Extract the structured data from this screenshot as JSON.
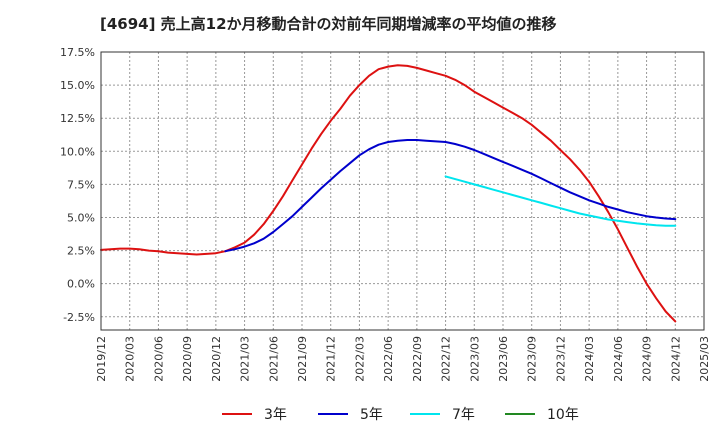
{
  "chart_data": {
    "type": "line",
    "title": "[4694]  売上高12か月移動合計の対前年同期増減率の平均値の推移",
    "xlabel": "",
    "ylabel": "",
    "ylim": [
      -3.5,
      17.5
    ],
    "yticks": [
      17.5,
      15.0,
      12.5,
      10.0,
      7.5,
      5.0,
      2.5,
      0.0,
      -2.5
    ],
    "ytick_labels": [
      "17.5%",
      "15.0%",
      "12.5%",
      "10.0%",
      "7.5%",
      "5.0%",
      "2.5%",
      "0.0%",
      "-2.5%"
    ],
    "x_ticks": [
      "2019/12",
      "2020/03",
      "2020/06",
      "2020/09",
      "2020/12",
      "2021/03",
      "2021/06",
      "2021/09",
      "2021/12",
      "2022/03",
      "2022/06",
      "2022/09",
      "2022/12",
      "2023/03",
      "2023/06",
      "2023/09",
      "2023/12",
      "2024/03",
      "2024/06",
      "2024/09",
      "2024/12",
      "2025/03"
    ],
    "grid": true,
    "legend_position": "bottom",
    "series": [
      {
        "name": "3年",
        "color": "#dd1111",
        "x": [
          "2019/12",
          "2020/01",
          "2020/02",
          "2020/03",
          "2020/04",
          "2020/05",
          "2020/06",
          "2020/07",
          "2020/08",
          "2020/09",
          "2020/10",
          "2020/11",
          "2020/12",
          "2021/01",
          "2021/02",
          "2021/03",
          "2021/04",
          "2021/05",
          "2021/06",
          "2021/07",
          "2021/08",
          "2021/09",
          "2021/10",
          "2021/11",
          "2021/12",
          "2022/01",
          "2022/02",
          "2022/03",
          "2022/04",
          "2022/05",
          "2022/06",
          "2022/07",
          "2022/08",
          "2022/09",
          "2022/10",
          "2022/11",
          "2022/12",
          "2023/01",
          "2023/02",
          "2023/03",
          "2023/04",
          "2023/05",
          "2023/06",
          "2023/07",
          "2023/08",
          "2023/09",
          "2023/10",
          "2023/11",
          "2023/12",
          "2024/01",
          "2024/02",
          "2024/03",
          "2024/04",
          "2024/05",
          "2024/06",
          "2024/07",
          "2024/08",
          "2024/09",
          "2024/10",
          "2024/11",
          "2024/12"
        ],
        "values": [
          2.55,
          2.6,
          2.65,
          2.65,
          2.6,
          2.5,
          2.45,
          2.35,
          2.3,
          2.25,
          2.2,
          2.25,
          2.3,
          2.45,
          2.75,
          3.1,
          3.7,
          4.5,
          5.5,
          6.6,
          7.8,
          9.0,
          10.2,
          11.3,
          12.3,
          13.2,
          14.2,
          15.0,
          15.7,
          16.2,
          16.4,
          16.5,
          16.45,
          16.3,
          16.1,
          15.9,
          15.7,
          15.4,
          15.0,
          14.5,
          14.1,
          13.7,
          13.3,
          12.9,
          12.5,
          12.0,
          11.4,
          10.8,
          10.1,
          9.4,
          8.6,
          7.7,
          6.6,
          5.4,
          4.1,
          2.7,
          1.3,
          0.0,
          -1.1,
          -2.1,
          -2.85
        ]
      },
      {
        "name": "5年",
        "color": "#0000cc",
        "x": [
          "2021/01",
          "2021/02",
          "2021/03",
          "2021/04",
          "2021/05",
          "2021/06",
          "2021/07",
          "2021/08",
          "2021/09",
          "2021/10",
          "2021/11",
          "2021/12",
          "2022/01",
          "2022/02",
          "2022/03",
          "2022/04",
          "2022/05",
          "2022/06",
          "2022/07",
          "2022/08",
          "2022/09",
          "2022/10",
          "2022/11",
          "2022/12",
          "2023/01",
          "2023/02",
          "2023/03",
          "2023/04",
          "2023/05",
          "2023/06",
          "2023/07",
          "2023/08",
          "2023/09",
          "2023/10",
          "2023/11",
          "2023/12",
          "2024/01",
          "2024/02",
          "2024/03",
          "2024/04",
          "2024/05",
          "2024/06",
          "2024/07",
          "2024/08",
          "2024/09",
          "2024/10",
          "2024/11",
          "2024/12"
        ],
        "values": [
          2.45,
          2.6,
          2.8,
          3.05,
          3.4,
          3.9,
          4.5,
          5.1,
          5.8,
          6.5,
          7.2,
          7.85,
          8.5,
          9.1,
          9.7,
          10.15,
          10.5,
          10.7,
          10.8,
          10.85,
          10.85,
          10.8,
          10.75,
          10.7,
          10.55,
          10.35,
          10.1,
          9.8,
          9.5,
          9.2,
          8.9,
          8.6,
          8.3,
          7.95,
          7.6,
          7.25,
          6.9,
          6.6,
          6.3,
          6.05,
          5.8,
          5.6,
          5.4,
          5.25,
          5.1,
          5.0,
          4.92,
          4.88
        ]
      },
      {
        "name": "7年",
        "color": "#00e5ee",
        "x": [
          "2022/12",
          "2023/01",
          "2023/02",
          "2023/03",
          "2023/04",
          "2023/05",
          "2023/06",
          "2023/07",
          "2023/08",
          "2023/09",
          "2023/10",
          "2023/11",
          "2023/12",
          "2024/01",
          "2024/02",
          "2024/03",
          "2024/04",
          "2024/05",
          "2024/06",
          "2024/07",
          "2024/08",
          "2024/09",
          "2024/10",
          "2024/11",
          "2024/12"
        ],
        "values": [
          8.1,
          7.9,
          7.7,
          7.5,
          7.3,
          7.1,
          6.9,
          6.7,
          6.5,
          6.3,
          6.1,
          5.9,
          5.7,
          5.5,
          5.3,
          5.15,
          5.0,
          4.85,
          4.75,
          4.65,
          4.55,
          4.48,
          4.42,
          4.38,
          4.37
        ]
      },
      {
        "name": "10年",
        "color": "#228822",
        "x": [],
        "values": []
      }
    ]
  }
}
